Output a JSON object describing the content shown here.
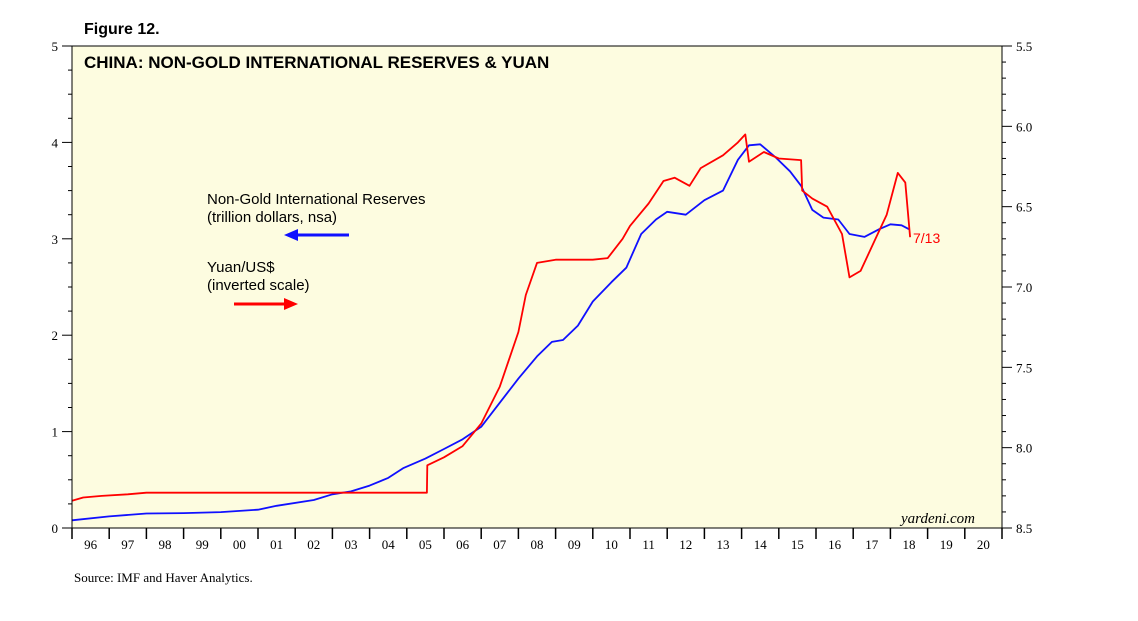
{
  "figure_label": "Figure 12.",
  "source": "Source: IMF and Haver Analytics.",
  "brand": "yardeni.com",
  "colors": {
    "plot_bg": "#fdfce0",
    "reserves": "#1010ff",
    "yuan": "#ff0000"
  },
  "chart_data": {
    "type": "line",
    "title": "CHINA: NON-GOLD INTERNATIONAL RESERVES & YUAN",
    "x_tick_labels": [
      "96",
      "97",
      "98",
      "99",
      "00",
      "01",
      "02",
      "03",
      "04",
      "05",
      "06",
      "07",
      "08",
      "09",
      "10",
      "11",
      "12",
      "13",
      "14",
      "15",
      "16",
      "17",
      "18",
      "19",
      "20"
    ],
    "x_range": [
      1996,
      2021
    ],
    "y_left": {
      "range": [
        0,
        5
      ],
      "ticks": [
        0,
        1,
        2,
        3,
        4,
        5
      ],
      "tick_labels": [
        "0",
        "1",
        "2",
        "3",
        "4",
        "5"
      ]
    },
    "y_right": {
      "range": [
        5.5,
        8.5
      ],
      "inverted": true,
      "ticks": [
        5.5,
        6.0,
        6.5,
        7.0,
        7.5,
        8.0,
        8.5
      ],
      "tick_labels": [
        "5.5",
        "6.0",
        "6.5",
        "7.0",
        "7.5",
        "8.0",
        "8.5"
      ]
    },
    "legend": [
      {
        "line1": "Non-Gold International Reserves",
        "line2": "(trillion dollars, nsa)",
        "axis": "left"
      },
      {
        "line1": "Yuan/US$",
        "line2": "(inverted scale)",
        "axis": "right"
      }
    ],
    "end_label": "7/13",
    "series": [
      {
        "name": "Non-Gold International Reserves",
        "unit": "trillion dollars, nsa",
        "axis": "left",
        "points": [
          [
            1996.0,
            0.08
          ],
          [
            1997.0,
            0.12
          ],
          [
            1998.0,
            0.15
          ],
          [
            1999.0,
            0.155
          ],
          [
            2000.0,
            0.165
          ],
          [
            2001.0,
            0.19
          ],
          [
            2001.5,
            0.23
          ],
          [
            2002.5,
            0.29
          ],
          [
            2003.0,
            0.35
          ],
          [
            2003.5,
            0.38
          ],
          [
            2004.0,
            0.44
          ],
          [
            2004.5,
            0.52
          ],
          [
            2004.9,
            0.62
          ],
          [
            2005.5,
            0.72
          ],
          [
            2006.0,
            0.82
          ],
          [
            2006.5,
            0.92
          ],
          [
            2007.0,
            1.05
          ],
          [
            2007.5,
            1.3
          ],
          [
            2008.0,
            1.55
          ],
          [
            2008.5,
            1.78
          ],
          [
            2008.9,
            1.93
          ],
          [
            2009.2,
            1.95
          ],
          [
            2009.6,
            2.1
          ],
          [
            2010.0,
            2.35
          ],
          [
            2010.5,
            2.55
          ],
          [
            2010.9,
            2.7
          ],
          [
            2011.3,
            3.05
          ],
          [
            2011.7,
            3.2
          ],
          [
            2012.0,
            3.28
          ],
          [
            2012.5,
            3.25
          ],
          [
            2013.0,
            3.4
          ],
          [
            2013.5,
            3.5
          ],
          [
            2013.9,
            3.82
          ],
          [
            2014.2,
            3.97
          ],
          [
            2014.5,
            3.98
          ],
          [
            2014.9,
            3.85
          ],
          [
            2015.3,
            3.7
          ],
          [
            2015.6,
            3.55
          ],
          [
            2015.9,
            3.3
          ],
          [
            2016.2,
            3.22
          ],
          [
            2016.6,
            3.2
          ],
          [
            2016.9,
            3.05
          ],
          [
            2017.3,
            3.02
          ],
          [
            2017.7,
            3.1
          ],
          [
            2018.0,
            3.15
          ],
          [
            2018.3,
            3.14
          ],
          [
            2018.5,
            3.1
          ]
        ]
      },
      {
        "name": "Yuan/US$",
        "unit": "inverted scale",
        "axis": "right",
        "points": [
          [
            1996.0,
            8.33
          ],
          [
            1996.3,
            8.31
          ],
          [
            1996.8,
            8.3
          ],
          [
            1997.5,
            8.29
          ],
          [
            1998.0,
            8.28
          ],
          [
            1999.0,
            8.28
          ],
          [
            2002.0,
            8.28
          ],
          [
            2005.54,
            8.28
          ],
          [
            2005.55,
            8.11
          ],
          [
            2006.0,
            8.06
          ],
          [
            2006.5,
            7.99
          ],
          [
            2007.0,
            7.85
          ],
          [
            2007.5,
            7.62
          ],
          [
            2008.0,
            7.28
          ],
          [
            2008.2,
            7.05
          ],
          [
            2008.5,
            6.85
          ],
          [
            2009.0,
            6.83
          ],
          [
            2010.0,
            6.83
          ],
          [
            2010.4,
            6.82
          ],
          [
            2010.8,
            6.7
          ],
          [
            2011.0,
            6.62
          ],
          [
            2011.5,
            6.48
          ],
          [
            2011.9,
            6.34
          ],
          [
            2012.2,
            6.32
          ],
          [
            2012.6,
            6.37
          ],
          [
            2012.9,
            6.26
          ],
          [
            2013.5,
            6.18
          ],
          [
            2013.9,
            6.1
          ],
          [
            2014.1,
            6.05
          ],
          [
            2014.2,
            6.22
          ],
          [
            2014.6,
            6.16
          ],
          [
            2015.0,
            6.2
          ],
          [
            2015.6,
            6.21
          ],
          [
            2015.63,
            6.4
          ],
          [
            2015.9,
            6.45
          ],
          [
            2016.3,
            6.5
          ],
          [
            2016.7,
            6.67
          ],
          [
            2016.9,
            6.94
          ],
          [
            2017.2,
            6.9
          ],
          [
            2017.6,
            6.7
          ],
          [
            2017.9,
            6.55
          ],
          [
            2018.2,
            6.29
          ],
          [
            2018.4,
            6.35
          ],
          [
            2018.53,
            6.69
          ]
        ]
      }
    ]
  }
}
